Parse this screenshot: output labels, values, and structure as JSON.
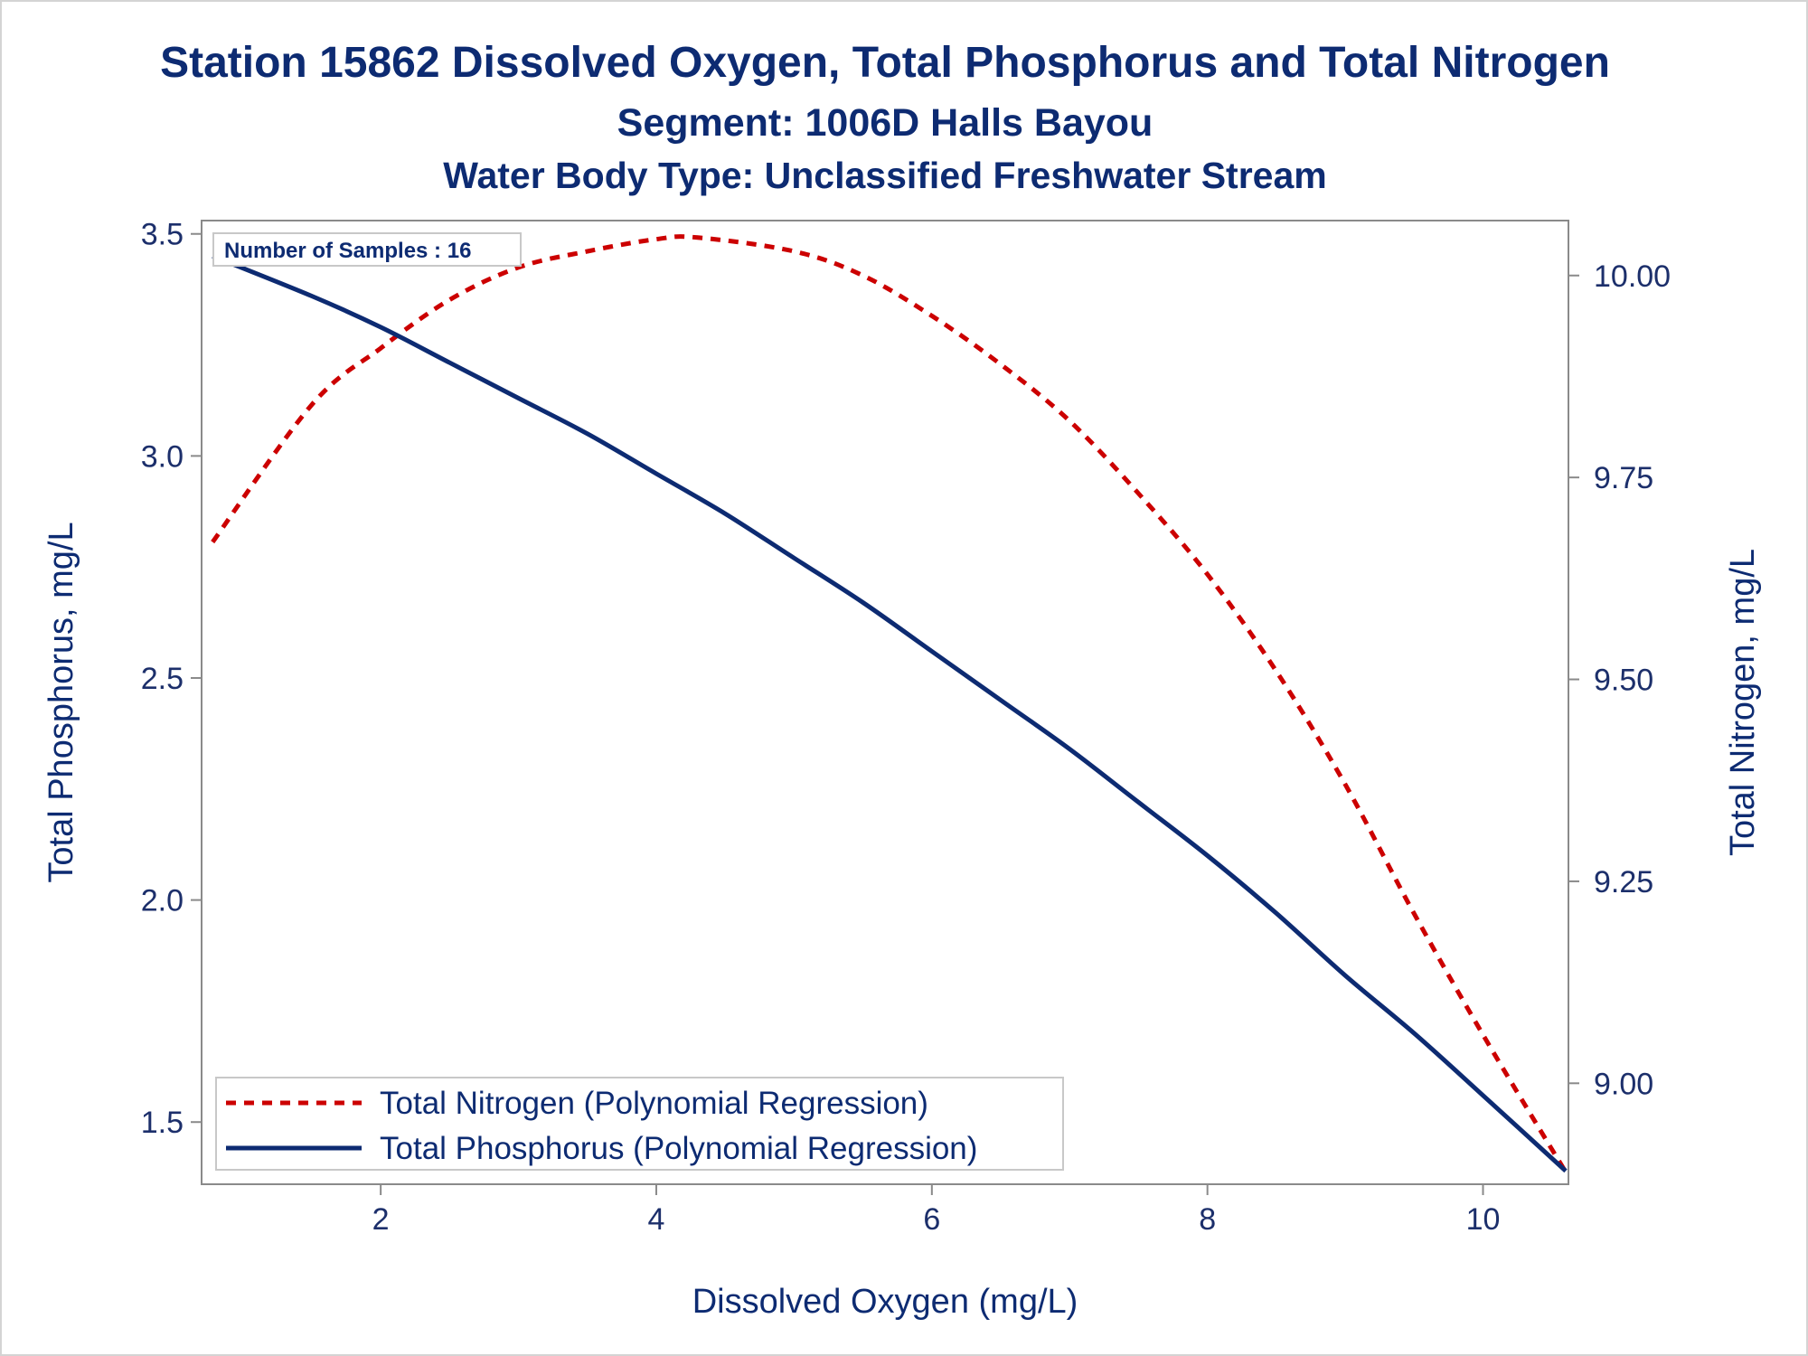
{
  "chart_data": {
    "type": "line",
    "title": "Station 15862  Dissolved Oxygen, Total Phosphorus and Total Nitrogen",
    "subtitle": "Segment: 1006D  Halls Bayou",
    "subtitle2": "Water Body Type: Unclassified Freshwater Stream",
    "xlabel": "Dissolved Oxygen (mg/L)",
    "ylabel": "Total Phosphorus, mg/L",
    "y2label": "Total Nitrogen, mg/L",
    "xlim": [
      0.7,
      10.62
    ],
    "ylim": [
      1.36,
      3.53
    ],
    "y2lim": [
      8.875,
      10.068
    ],
    "x_ticks": [
      2,
      4,
      6,
      8,
      10
    ],
    "x_tick_labels": [
      "2",
      "4",
      "6",
      "8",
      "10"
    ],
    "y_ticks": [
      1.5,
      2.0,
      2.5,
      3.0,
      3.5
    ],
    "y_tick_labels": [
      "1.5",
      "2.0",
      "2.5",
      "3.0",
      "3.5"
    ],
    "y2_ticks": [
      9.0,
      9.25,
      9.5,
      9.75,
      10.0
    ],
    "y2_tick_labels": [
      "9.00",
      "9.25",
      "9.50",
      "9.75",
      "10.00"
    ],
    "annotation": "Number of Samples : 16",
    "legend_position": "bottom-left",
    "grid": false,
    "series": [
      {
        "name": "Total Nitrogen (Polynomial Regression)",
        "axis": "right",
        "style": "dashed",
        "color": "#cc0000",
        "x": [
          0.78,
          1.5,
          2.0,
          2.5,
          3.0,
          3.5,
          4.0,
          4.3,
          5.0,
          5.5,
          6.0,
          6.5,
          7.0,
          7.5,
          8.0,
          8.5,
          9.0,
          9.5,
          10.0,
          10.6
        ],
        "y": [
          9.67,
          9.84,
          9.91,
          9.97,
          10.01,
          10.03,
          10.045,
          10.047,
          10.03,
          10.0,
          9.95,
          9.89,
          9.82,
          9.73,
          9.63,
          9.51,
          9.37,
          9.21,
          9.06,
          8.89
        ]
      },
      {
        "name": "Total Phosphorus (Polynomial Regression)",
        "axis": "left",
        "style": "solid",
        "color": "#0d2b72",
        "x": [
          0.78,
          1.5,
          2.0,
          2.5,
          3.0,
          3.5,
          4.0,
          4.5,
          5.0,
          5.5,
          6.0,
          6.5,
          7.0,
          7.5,
          8.0,
          8.5,
          9.0,
          9.5,
          10.0,
          10.6
        ],
        "y": [
          3.45,
          3.36,
          3.29,
          3.21,
          3.13,
          3.05,
          2.96,
          2.87,
          2.77,
          2.67,
          2.56,
          2.45,
          2.34,
          2.22,
          2.1,
          1.97,
          1.83,
          1.7,
          1.56,
          1.39
        ]
      }
    ]
  }
}
